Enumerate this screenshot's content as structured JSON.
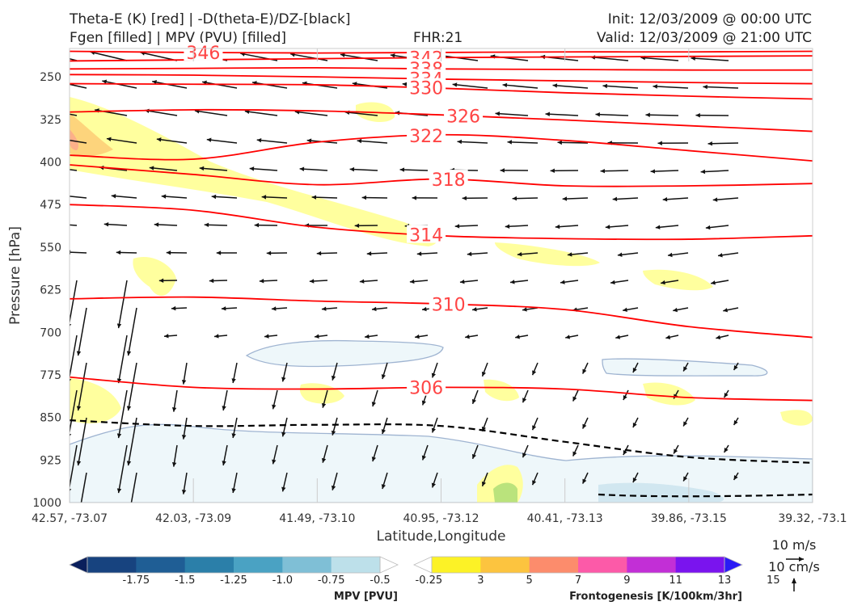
{
  "header": {
    "line1_left": "Theta-E (K) [red] | -D(theta-E)/DZ-[black]",
    "line2_left": "Fgen [filled] | MPV (PVU) [filled]",
    "fhr": "FHR:21",
    "init": "Init: 12/03/2009 @ 00:00 UTC",
    "valid": "Valid: 12/03/2009 @ 21:00 UTC"
  },
  "chart_data": {
    "type": "cross-section",
    "xlabel": "Latitude,Longitude",
    "ylabel": "Pressure [hPa]",
    "x_ticks": [
      "42.57, -73.07",
      "42.03, -73.09",
      "41.49, -73.10",
      "40.95, -73.12",
      "40.41, -73.13",
      "39.86, -73.15",
      "39.32, -73.1"
    ],
    "y_ticks": [
      250,
      325,
      400,
      475,
      550,
      625,
      700,
      775,
      850,
      925,
      1000
    ],
    "ylim": [
      1000,
      200
    ],
    "theta_e_contours": [
      {
        "label": "346",
        "p": [
          205,
          207,
          208,
          207,
          206,
          206,
          205
        ]
      },
      {
        "label": "342",
        "p": [
          222,
          220,
          218,
          216,
          215,
          214,
          213
        ]
      },
      {
        "label": "338",
        "p": [
          236,
          235,
          234,
          236,
          237,
          238,
          238
        ]
      },
      {
        "label": "334",
        "p": [
          246,
          247,
          250,
          254,
          257,
          260,
          262
        ]
      },
      {
        "label": "330",
        "p": [
          262,
          263,
          264,
          270,
          278,
          284,
          289
        ]
      },
      {
        "label": "326",
        "p": [
          312,
          308,
          310,
          317,
          326,
          336,
          346
        ]
      },
      {
        "label": "322",
        "p": [
          388,
          395,
          365,
          352,
          362,
          380,
          398
        ]
      },
      {
        "label": "318",
        "p": [
          405,
          422,
          440,
          430,
          442,
          442,
          438
        ]
      },
      {
        "label": "314",
        "p": [
          475,
          485,
          515,
          530,
          535,
          536,
          530
        ]
      },
      {
        "label": "310",
        "p": [
          641,
          638,
          645,
          650,
          660,
          690,
          709
        ]
      },
      {
        "label": "306",
        "p": [
          779,
          797,
          800,
          797,
          800,
          815,
          820
        ]
      }
    ],
    "stability_contour": {
      "p": [
        855,
        865,
        863,
        865,
        893,
        920,
        930
      ],
      "style": "dashed"
    },
    "reference_vectors": [
      "10 m/s",
      "10 cm/s"
    ],
    "colorbars": [
      {
        "title": "MPV [PVU]",
        "ticks": [
          "-1.75",
          "-1.5",
          "-1.25",
          "-1.0",
          "-0.75",
          "-0.5",
          "-0.25"
        ],
        "colors": [
          "#0a1f5c",
          "#17437f",
          "#1f5e95",
          "#2b7fa9",
          "#4aa2c3",
          "#7fbfd6",
          "#bde0ea",
          "#ffffff"
        ]
      },
      {
        "title": "Frontogenesis [K/100km/3hr]",
        "ticks": [
          "3",
          "5",
          "7",
          "9",
          "11",
          "13",
          "15"
        ],
        "colors": [
          "#ffffff",
          "#fcf226",
          "#fcc43f",
          "#fc8c6c",
          "#fc5aa8",
          "#c22fd6",
          "#7a14ee",
          "#2a1bf5"
        ]
      }
    ]
  },
  "colors": {
    "theta_e": "#ff0000",
    "theta_e_label": "#ff4444",
    "stability": "#000000",
    "mpv_fill": "#eef7fa",
    "fgen_fill": "#ffff99"
  }
}
